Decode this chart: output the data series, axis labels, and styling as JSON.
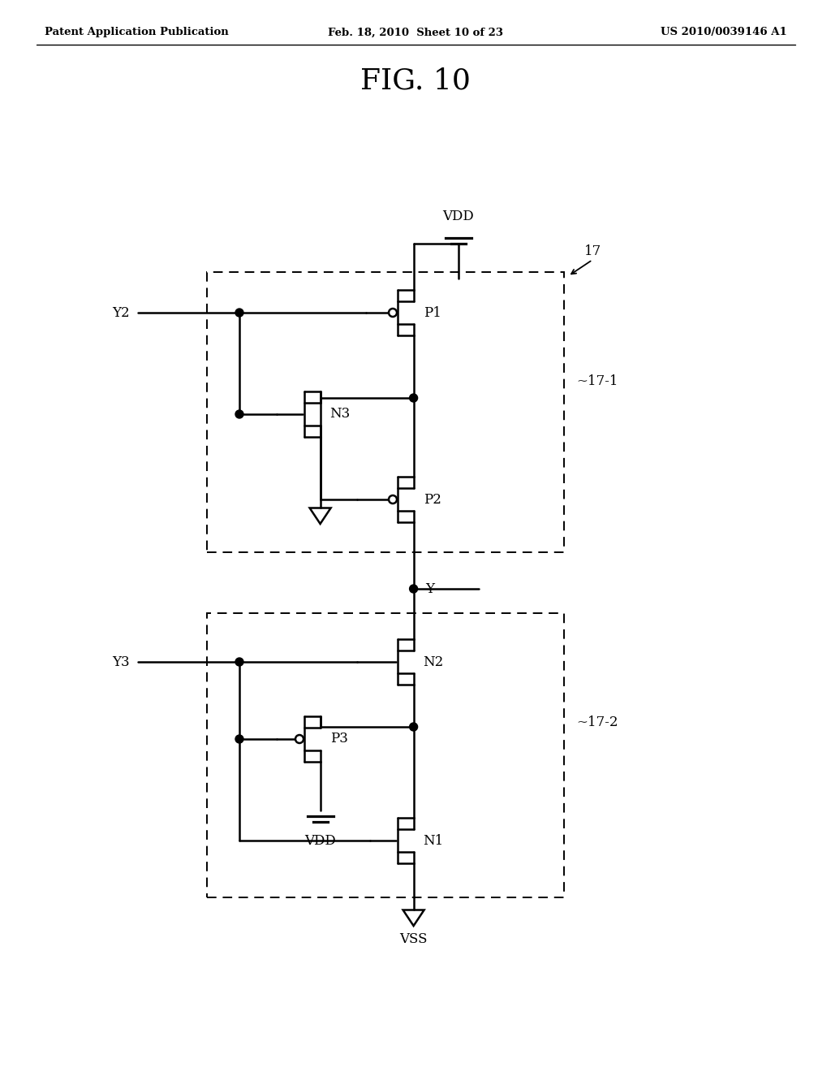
{
  "title": "FIG. 10",
  "header_left": "Patent Application Publication",
  "header_center": "Feb. 18, 2010  Sheet 10 of 23",
  "header_right": "US 2010/0039146 A1",
  "bg_color": "#ffffff"
}
